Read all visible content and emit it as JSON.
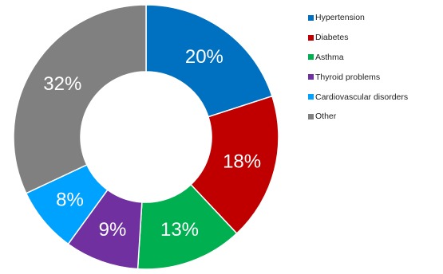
{
  "chart_data": {
    "type": "pie",
    "title": "",
    "donut": true,
    "legend_position": "right",
    "series": [
      {
        "name": "Hypertension",
        "value": 20,
        "label": "20%",
        "color": "#0070C0"
      },
      {
        "name": "Diabetes",
        "value": 18,
        "label": "18%",
        "color": "#C00000"
      },
      {
        "name": "Asthma",
        "value": 13,
        "label": "13%",
        "color": "#00B050"
      },
      {
        "name": "Thyroid problems",
        "value": 9,
        "label": "9%",
        "color": "#7030A0"
      },
      {
        "name": "Cardiovascular disorders",
        "value": 8,
        "label": "8%",
        "color": "#00A2FF"
      },
      {
        "name": "Other",
        "value": 32,
        "label": "32%",
        "color": "#808080"
      }
    ]
  }
}
